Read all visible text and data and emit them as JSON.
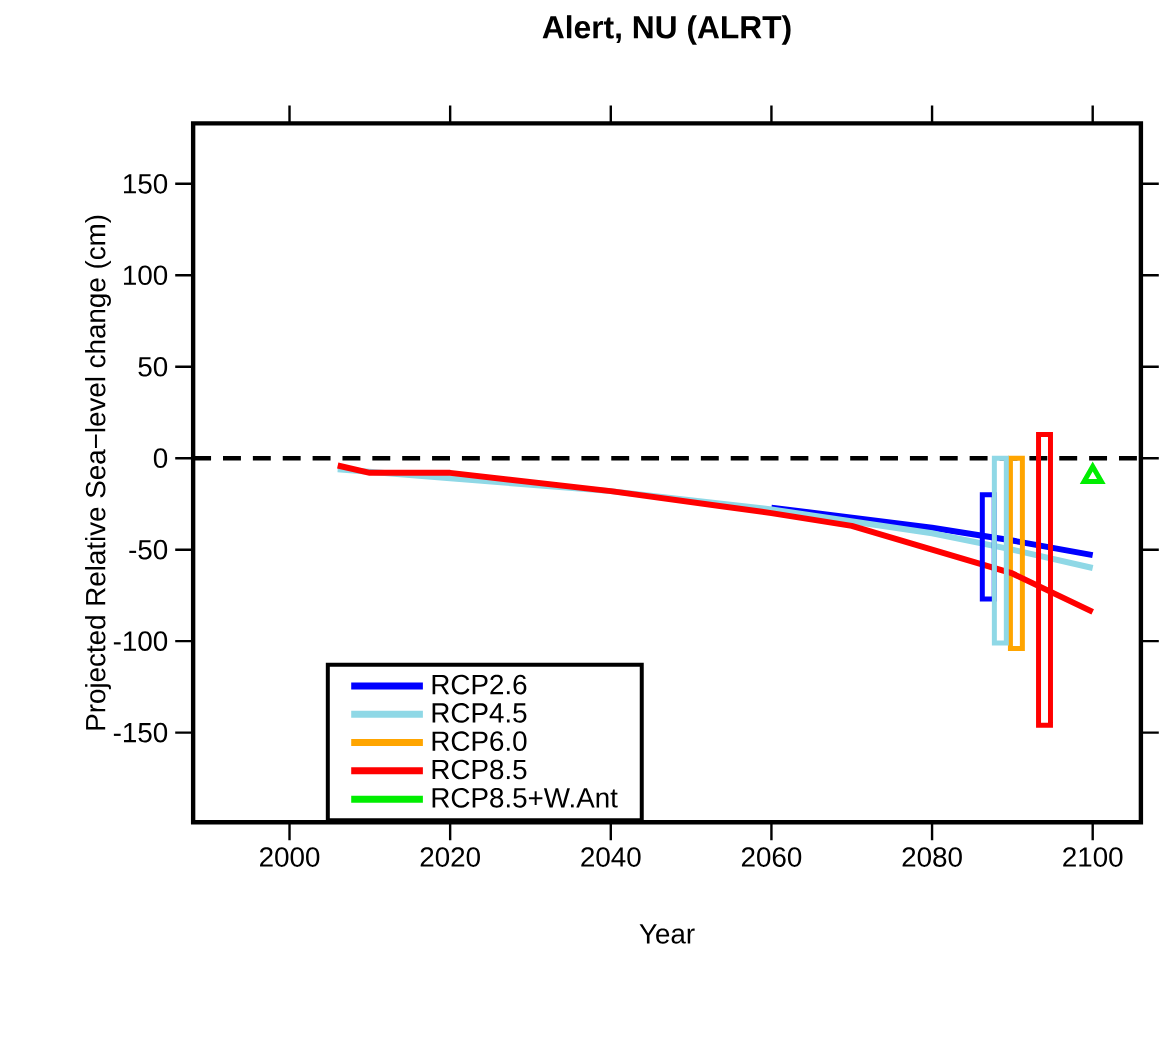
{
  "chart_data": {
    "type": "line",
    "title": "Alert, NU (ALRT)",
    "xlabel": "Year",
    "ylabel": "Projected Relative Sea−level change (cm)",
    "xlim": [
      1988,
      2106
    ],
    "ylim": [
      -199,
      183
    ],
    "xticks": [
      2000,
      2020,
      2040,
      2060,
      2080,
      2100
    ],
    "yticks": [
      -150,
      -100,
      -50,
      0,
      50,
      100,
      150
    ],
    "legend": "bottom left",
    "grid": false,
    "series": [
      {
        "name": "RCP2.6",
        "color": "#0000ff",
        "x": [
          2060,
          2080,
          2090,
          2100
        ],
        "values": [
          -27,
          -38,
          -45,
          -53
        ]
      },
      {
        "name": "RCP4.5",
        "color": "#8fd8e6",
        "x": [
          2006,
          2020,
          2040,
          2060,
          2080,
          2090,
          2100
        ],
        "values": [
          -6,
          -11,
          -18,
          -28,
          -41,
          -50,
          -60
        ]
      },
      {
        "name": "RCP6.0",
        "color": "#ffa500",
        "type": "bar",
        "x": [
          2090.5
        ],
        "base": [
          -104
        ],
        "values": [
          104
        ]
      },
      {
        "name": "RCP8.5",
        "color": "#ff0000",
        "x": [
          2006,
          2010,
          2020,
          2040,
          2060,
          2070,
          2080,
          2090,
          2100
        ],
        "values": [
          -4,
          -8,
          -8,
          -18,
          -30,
          -37,
          -50,
          -63,
          -84
        ]
      },
      {
        "name": "RCP8.5+W.Ant",
        "color": "#00ee00",
        "type": "scatter",
        "marker": "triangle",
        "x": [
          2100
        ],
        "values": [
          -10
        ]
      },
      {
        "color": "#0000ff",
        "type": "bar",
        "x": [
          2087
        ],
        "base": [
          -77
        ],
        "values": [
          57
        ]
      },
      {
        "color": "#8fd8e6",
        "type": "bar",
        "x": [
          2088.5
        ],
        "base": [
          -101
        ],
        "values": [
          101
        ]
      },
      {
        "color": "#ff0000",
        "type": "bar",
        "x": [
          2094
        ],
        "base": [
          -146
        ],
        "values": [
          159
        ]
      }
    ],
    "ref_lines": [
      {
        "axis": "y",
        "value": 0,
        "color": "#000000",
        "line_style": "dashed"
      }
    ]
  }
}
